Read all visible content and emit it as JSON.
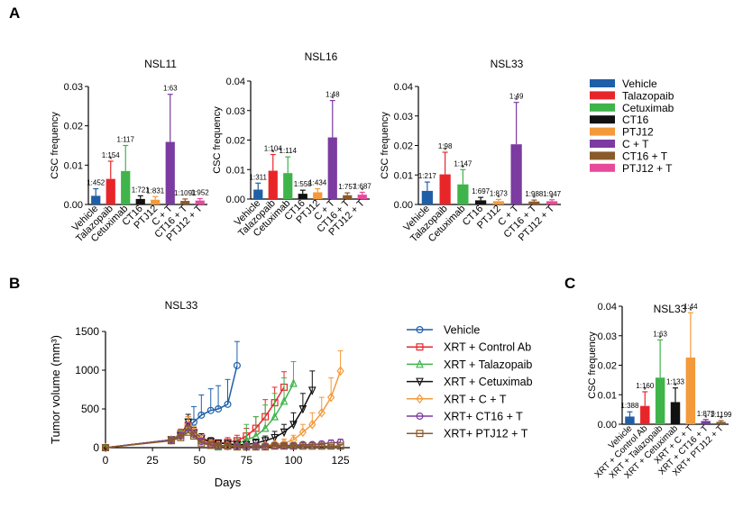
{
  "panel_labels": {
    "a": "A",
    "b": "B",
    "c": "C"
  },
  "colors": {
    "Vehicle": "#1f5fa8",
    "Talazopaib": "#e8262a",
    "Cetuximab": "#3fb44a",
    "CT16": "#111111",
    "PTJ12": "#f39a3a",
    "C + T": "#7b3ba0",
    "CT16 + T": "#8a5a2b",
    "PTJ12 + T": "#e84a9a"
  },
  "legend_a": [
    "Vehicle",
    "Talazopaib",
    "Cetuximab",
    "CT16",
    "PTJ12",
    "C + T",
    "CT16 + T",
    "PTJ12 + T"
  ],
  "chart_data": [
    {
      "type": "bar",
      "panel": "A",
      "title": "NSL11",
      "ylabel": "CSC frequency",
      "ylim": [
        0,
        0.03
      ],
      "yticks": [
        "0.00",
        "0.01",
        "0.02",
        "0.03"
      ],
      "ytick_values": [
        0,
        0.01,
        0.02,
        0.03
      ],
      "categories": [
        "Vehicle",
        "Talazopaib",
        "Cetuximab",
        "CT16",
        "PTJ12",
        "C + T",
        "CT16 + T",
        "PTJ12 + T"
      ],
      "values": [
        0.0022,
        0.0065,
        0.0085,
        0.0014,
        0.0012,
        0.0159,
        0.0009,
        0.001
      ],
      "errors": [
        0.0018,
        0.0045,
        0.0065,
        0.0008,
        0.0008,
        0.0121,
        0.0005,
        0.0005
      ],
      "labels": [
        "1:452",
        "1:154",
        "1:117",
        "1:721",
        "1:831",
        "1:63",
        "1:1091",
        "1:952"
      ],
      "stars": [
        false,
        true,
        false,
        false,
        false,
        false,
        false,
        false
      ]
    },
    {
      "type": "bar",
      "panel": "A",
      "title": "NSL16",
      "ylabel": "CSC frequency",
      "ylim": [
        0,
        0.04
      ],
      "yticks": [
        "0.00",
        "0.01",
        "0.02",
        "0.03",
        "0.04"
      ],
      "ytick_values": [
        0,
        0.01,
        0.02,
        0.03,
        0.04
      ],
      "categories": [
        "Vehicle",
        "Talazopaib",
        "Cetuximab",
        "CT16",
        "PTJ12",
        "C + T",
        "CT16 + T",
        "PTJ12 + T"
      ],
      "values": [
        0.0032,
        0.0096,
        0.0088,
        0.0018,
        0.0023,
        0.0209,
        0.0013,
        0.0015
      ],
      "errors": [
        0.0022,
        0.0055,
        0.0055,
        0.0012,
        0.0012,
        0.0125,
        0.0008,
        0.0008
      ],
      "labels": [
        "1:311",
        "1:104",
        "1:114",
        "1:558",
        "1:434",
        "1:48",
        "1:757",
        "1:687"
      ],
      "stars": [
        false,
        true,
        false,
        false,
        false,
        true,
        false,
        true
      ]
    },
    {
      "type": "bar",
      "panel": "A",
      "title": "NSL33",
      "ylabel": "CSC frequency",
      "ylim": [
        0,
        0.04
      ],
      "yticks": [
        "0.00",
        "0.01",
        "0.02",
        "0.03",
        "0.04"
      ],
      "ytick_values": [
        0,
        0.01,
        0.02,
        0.03,
        0.04
      ],
      "categories": [
        "Vehicle",
        "Talazopaib",
        "Cetuximab",
        "CT16",
        "PTJ12",
        "C + T",
        "CT16 + T",
        "PTJ12 + T"
      ],
      "values": [
        0.0046,
        0.0102,
        0.0068,
        0.0014,
        0.0011,
        0.0204,
        0.001,
        0.0011
      ],
      "errors": [
        0.003,
        0.0075,
        0.005,
        0.001,
        0.0006,
        0.0142,
        0.0005,
        0.0005
      ],
      "labels": [
        "1:217",
        "1:98",
        "1:147",
        "1:697",
        "1:873",
        "1:49",
        "1:988",
        "1:947"
      ],
      "stars": [
        false,
        true,
        true,
        false,
        true,
        true,
        true,
        true
      ]
    },
    {
      "type": "line",
      "panel": "B",
      "title": "NSL33",
      "xlabel": "Days",
      "ylabel": "Tumor volume (mm³)",
      "xlim": [
        0,
        130
      ],
      "ylim": [
        0,
        1500
      ],
      "xticks": [
        0,
        25,
        50,
        75,
        100,
        125
      ],
      "yticks": [
        0,
        500,
        1000,
        1500
      ],
      "series": [
        {
          "name": "Vehicle",
          "color": "#1f5fa8",
          "marker": "circle",
          "x": [
            0,
            35,
            40,
            44,
            47,
            51,
            56,
            60,
            65,
            70
          ],
          "y": [
            0,
            100,
            150,
            260,
            330,
            420,
            480,
            500,
            560,
            1060
          ],
          "err": [
            0,
            30,
            60,
            140,
            200,
            260,
            280,
            300,
            320,
            310
          ]
        },
        {
          "name": "XRT + Control Ab",
          "color": "#e8262a",
          "marker": "square",
          "x": [
            0,
            35,
            40,
            44,
            47,
            51,
            56,
            60,
            65,
            70,
            75,
            80,
            85,
            90,
            95
          ],
          "y": [
            0,
            100,
            180,
            290,
            200,
            120,
            60,
            50,
            70,
            90,
            150,
            250,
            400,
            580,
            780
          ],
          "err": [
            0,
            30,
            60,
            80,
            80,
            60,
            40,
            40,
            60,
            70,
            100,
            150,
            220,
            200,
            200
          ]
        },
        {
          "name": "XRT + Talazopaib",
          "color": "#3fb44a",
          "marker": "triangle",
          "x": [
            0,
            35,
            40,
            44,
            47,
            51,
            56,
            60,
            65,
            70,
            75,
            80,
            85,
            90,
            95,
            100
          ],
          "y": [
            0,
            100,
            170,
            230,
            200,
            100,
            30,
            10,
            20,
            50,
            100,
            150,
            250,
            400,
            600,
            830
          ],
          "err": [
            0,
            30,
            60,
            80,
            80,
            60,
            30,
            10,
            30,
            60,
            200,
            250,
            300,
            300,
            300,
            280
          ]
        },
        {
          "name": "XRT + Cetuximab",
          "color": "#111111",
          "marker": "triangle-down",
          "x": [
            0,
            35,
            40,
            44,
            47,
            51,
            56,
            60,
            65,
            70,
            75,
            80,
            85,
            90,
            95,
            100,
            105,
            110
          ],
          "y": [
            0,
            100,
            150,
            330,
            180,
            120,
            80,
            60,
            50,
            40,
            40,
            60,
            90,
            130,
            200,
            300,
            500,
            740
          ],
          "err": [
            0,
            30,
            60,
            100,
            80,
            60,
            50,
            40,
            40,
            40,
            40,
            50,
            60,
            80,
            100,
            150,
            200,
            250
          ]
        },
        {
          "name": "XRT + C + T",
          "color": "#f39a3a",
          "marker": "diamond",
          "x": [
            0,
            35,
            40,
            44,
            47,
            51,
            56,
            60,
            65,
            70,
            75,
            80,
            85,
            90,
            95,
            100,
            105,
            110,
            115,
            120,
            125
          ],
          "y": [
            0,
            100,
            150,
            300,
            200,
            100,
            50,
            30,
            20,
            20,
            20,
            20,
            30,
            40,
            60,
            100,
            200,
            300,
            450,
            650,
            990
          ],
          "err": [
            0,
            30,
            60,
            100,
            80,
            60,
            40,
            30,
            20,
            20,
            20,
            20,
            30,
            40,
            50,
            60,
            100,
            150,
            200,
            250,
            260
          ]
        },
        {
          "name": "XRT+ CT16 + T",
          "color": "#7b3ba0",
          "marker": "circle",
          "x": [
            0,
            35,
            40,
            44,
            47,
            51,
            56,
            60,
            65,
            70,
            75,
            80,
            85,
            90,
            95,
            100,
            105,
            110,
            115,
            120,
            125
          ],
          "y": [
            0,
            100,
            150,
            250,
            170,
            80,
            40,
            30,
            20,
            20,
            20,
            20,
            20,
            30,
            30,
            30,
            40,
            40,
            50,
            60,
            70
          ],
          "err": [
            0,
            30,
            50,
            70,
            60,
            40,
            30,
            20,
            20,
            20,
            20,
            20,
            20,
            20,
            20,
            20,
            30,
            30,
            30,
            40,
            40
          ]
        },
        {
          "name": "XRT+ PTJ12 + T",
          "color": "#8a5a2b",
          "marker": "square",
          "x": [
            0,
            35,
            40,
            44,
            47,
            51,
            56,
            60,
            65,
            70,
            75,
            80,
            85,
            90,
            95,
            100,
            105,
            110,
            115,
            120,
            125
          ],
          "y": [
            0,
            90,
            130,
            200,
            150,
            60,
            30,
            20,
            20,
            10,
            10,
            10,
            10,
            20,
            20,
            20,
            20,
            20,
            20,
            20,
            20
          ],
          "err": [
            0,
            30,
            50,
            70,
            60,
            40,
            30,
            20,
            20,
            20,
            20,
            20,
            20,
            20,
            20,
            20,
            20,
            20,
            20,
            20,
            20
          ]
        }
      ]
    },
    {
      "type": "bar",
      "panel": "C",
      "title": "NSL33",
      "ylabel": "CSC frequency",
      "ylim": [
        0,
        0.04
      ],
      "yticks": [
        "0.00",
        "0.01",
        "0.02",
        "0.03",
        "0.04"
      ],
      "ytick_values": [
        0,
        0.01,
        0.02,
        0.03,
        0.04
      ],
      "categories": [
        "Vehicle",
        "XRT + Control Ab",
        "XRT + Talazopaib",
        "XRT + Cetuximab",
        "XRT + C + T",
        "XRT + CT16 + T",
        "XRT+ PTJ12 + T"
      ],
      "colors": [
        "#1f5fa8",
        "#e8262a",
        "#3fb44a",
        "#111111",
        "#f39a3a",
        "#7b3ba0",
        "#8a5a2b"
      ],
      "values": [
        0.0026,
        0.0062,
        0.0158,
        0.0075,
        0.0226,
        0.0011,
        0.0008
      ],
      "errors": [
        0.0016,
        0.0048,
        0.0128,
        0.0048,
        0.0152,
        0.0005,
        0.0004
      ],
      "labels": [
        "1:388",
        "1:160",
        "1:63",
        "1:133",
        "1:44",
        "1:873",
        "1:1199"
      ],
      "stars": [
        false,
        true,
        true,
        true,
        true,
        true,
        true
      ]
    }
  ]
}
